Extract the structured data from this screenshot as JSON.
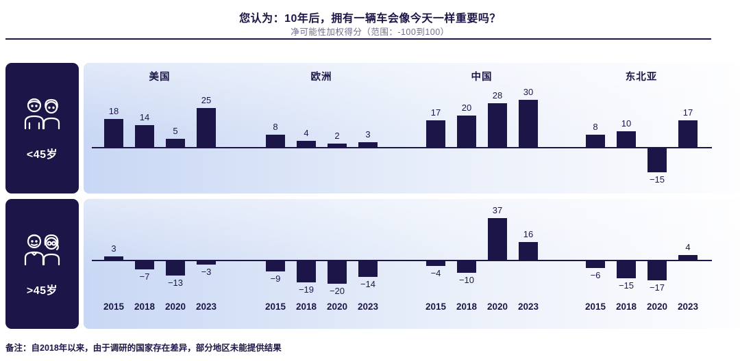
{
  "header": {
    "title": "您认为：10年后，拥有一辆车会像今天一样重要吗？",
    "subtitle": "净可能性加权得分（范围：-100到100）"
  },
  "sidebar": {
    "groups": [
      {
        "label": "<45岁",
        "icon": "young-couple-icon"
      },
      {
        "label": ">45岁",
        "icon": "elderly-couple-icon"
      }
    ]
  },
  "footer": {
    "note": "备注：自2018年以来，由于调研的国家存在差异，部分地区未能提供结果"
  },
  "colors": {
    "bar": "#1c1547",
    "sidebar_bg": "#1c1547",
    "title_text": "#1c1547",
    "subtitle_text": "#6e6e8e",
    "panel_gradient_left": "#c8d7f4",
    "panel_gradient_right": "#fdfdfe"
  },
  "chart_data": {
    "type": "bar",
    "title": "您认为：10年后，拥有一辆车会像今天一样重要吗？",
    "subtitle": "净可能性加权得分（范围：-100到100）",
    "ylim": [
      -100,
      100
    ],
    "grid": false,
    "legend": "none",
    "categories": [
      "2015",
      "2018",
      "2020",
      "2023"
    ],
    "regions": [
      "美国",
      "欧洲",
      "中国",
      "东北亚"
    ],
    "rows": [
      {
        "group": "<45岁",
        "series": [
          {
            "name": "美国",
            "values": [
              18,
              14,
              5,
              25
            ]
          },
          {
            "name": "欧洲",
            "values": [
              8,
              4,
              2,
              3
            ]
          },
          {
            "name": "中国",
            "values": [
              17,
              20,
              28,
              30
            ]
          },
          {
            "name": "东北亚",
            "values": [
              8,
              10,
              -15,
              17
            ]
          }
        ]
      },
      {
        "group": ">45岁",
        "series": [
          {
            "name": "美国",
            "values": [
              3,
              -7,
              -13,
              -3
            ]
          },
          {
            "name": "欧洲",
            "values": [
              -9,
              -19,
              -20,
              -14
            ]
          },
          {
            "name": "中国",
            "values": [
              -4,
              -10,
              37,
              16
            ]
          },
          {
            "name": "东北亚",
            "values": [
              -6,
              -15,
              -17,
              4
            ]
          }
        ]
      }
    ]
  }
}
